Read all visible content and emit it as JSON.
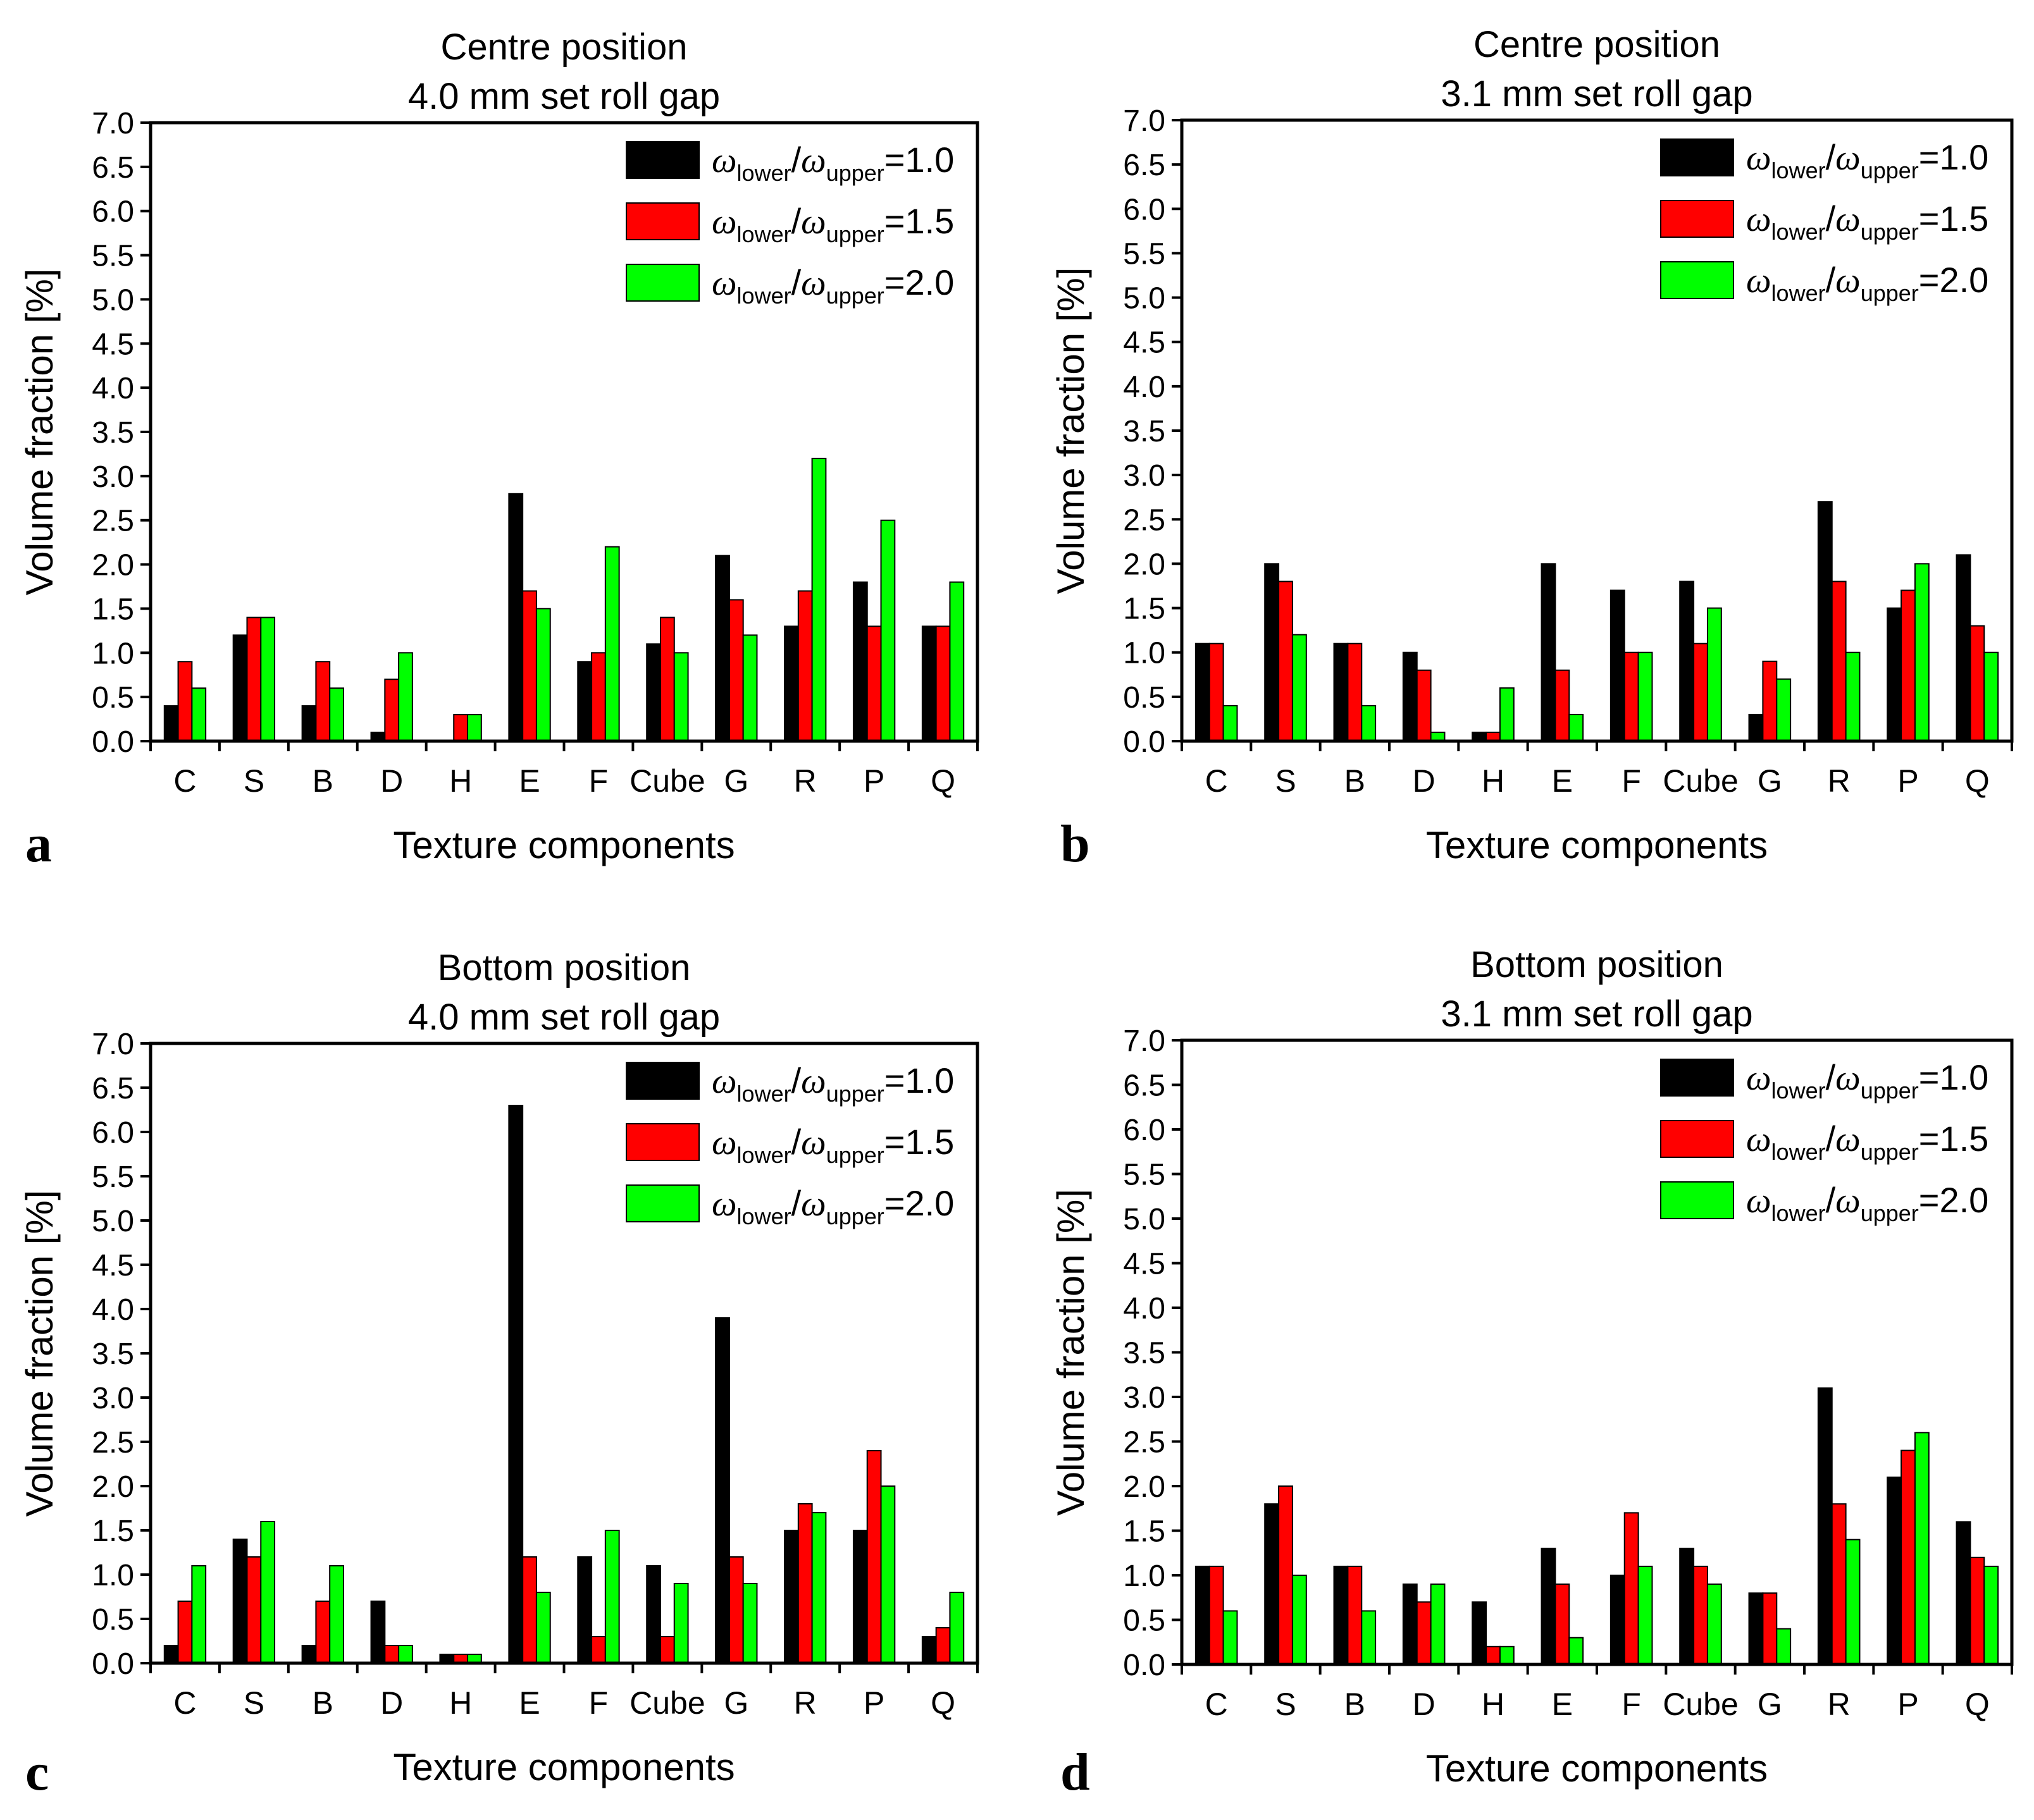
{
  "colors": {
    "s1": "#000000",
    "s2": "#ff0000",
    "s3": "#00ff00"
  },
  "chart_data": [
    {
      "id": "a",
      "type": "bar",
      "panel_letter": "a",
      "title_line1": "Centre position",
      "title_line2": "4.0 mm set roll gap",
      "xlabel": "Texture components",
      "ylabel": "Volume fraction [%]",
      "ylim": [
        0,
        7
      ],
      "yticks": [
        "0.0",
        "0.5",
        "1.0",
        "1.5",
        "2.0",
        "2.5",
        "3.0",
        "3.5",
        "4.0",
        "4.5",
        "5.0",
        "5.5",
        "6.0",
        "6.5",
        "7.0"
      ],
      "categories": [
        "C",
        "S",
        "B",
        "D",
        "H",
        "E",
        "F",
        "Cube",
        "G",
        "R",
        "P",
        "Q"
      ],
      "legend_position": "top-right",
      "series": [
        {
          "name": "ωlower/ωupper=1.0",
          "legend_prefix": "ω",
          "legend_sub1": "lower",
          "legend_sep": "/",
          "legend_sub2": "upper",
          "legend_value": "=1.0",
          "values": [
            0.4,
            1.2,
            0.4,
            0.1,
            0.0,
            2.8,
            0.9,
            1.1,
            2.1,
            1.3,
            1.8,
            1.3
          ]
        },
        {
          "name": "ωlower/ωupper=1.5",
          "legend_prefix": "ω",
          "legend_sub1": "lower",
          "legend_sep": "/",
          "legend_sub2": "upper",
          "legend_value": "=1.5",
          "values": [
            0.9,
            1.4,
            0.9,
            0.7,
            0.3,
            1.7,
            1.0,
            1.4,
            1.6,
            1.7,
            1.3,
            1.3
          ]
        },
        {
          "name": "ωlower/ωupper=2.0",
          "legend_prefix": "ω",
          "legend_sub1": "lower",
          "legend_sep": "/",
          "legend_sub2": "upper",
          "legend_value": "=2.0",
          "values": [
            0.6,
            1.4,
            0.6,
            1.0,
            0.3,
            1.5,
            2.2,
            1.0,
            1.2,
            3.2,
            2.5,
            1.8
          ]
        }
      ]
    },
    {
      "id": "b",
      "type": "bar",
      "panel_letter": "b",
      "title_line1": "Centre position",
      "title_line2": "3.1 mm set roll gap",
      "xlabel": "Texture components",
      "ylabel": "Volume fraction [%]",
      "ylim": [
        0,
        7
      ],
      "yticks": [
        "0.0",
        "0.5",
        "1.0",
        "1.5",
        "2.0",
        "2.5",
        "3.0",
        "3.5",
        "4.0",
        "4.5",
        "5.0",
        "5.5",
        "6.0",
        "6.5",
        "7.0"
      ],
      "categories": [
        "C",
        "S",
        "B",
        "D",
        "H",
        "E",
        "F",
        "Cube",
        "G",
        "R",
        "P",
        "Q"
      ],
      "legend_position": "top-right",
      "series": [
        {
          "name": "ωlower/ωupper=1.0",
          "legend_prefix": "ω",
          "legend_sub1": "lower",
          "legend_sep": "/",
          "legend_sub2": "upper",
          "legend_value": "=1.0",
          "values": [
            1.1,
            2.0,
            1.1,
            1.0,
            0.1,
            2.0,
            1.7,
            1.8,
            0.3,
            2.7,
            1.5,
            2.1
          ]
        },
        {
          "name": "ωlower/ωupper=1.5",
          "legend_prefix": "ω",
          "legend_sub1": "lower",
          "legend_sep": "/",
          "legend_sub2": "upper",
          "legend_value": "=1.5",
          "values": [
            1.1,
            1.8,
            1.1,
            0.8,
            0.1,
            0.8,
            1.0,
            1.1,
            0.9,
            1.8,
            1.7,
            1.3
          ]
        },
        {
          "name": "ωlower/ωupper=2.0",
          "legend_prefix": "ω",
          "legend_sub1": "lower",
          "legend_sep": "/",
          "legend_sub2": "upper",
          "legend_value": "=2.0",
          "values": [
            0.4,
            1.2,
            0.4,
            0.1,
            0.6,
            0.3,
            1.0,
            1.5,
            0.7,
            1.0,
            2.0,
            1.0
          ]
        }
      ]
    },
    {
      "id": "c",
      "type": "bar",
      "panel_letter": "c",
      "title_line1": "Bottom position",
      "title_line2": "4.0 mm set roll gap",
      "xlabel": "Texture components",
      "ylabel": "Volume fraction [%]",
      "ylim": [
        0,
        7
      ],
      "yticks": [
        "0.0",
        "0.5",
        "1.0",
        "1.5",
        "2.0",
        "2.5",
        "3.0",
        "3.5",
        "4.0",
        "4.5",
        "5.0",
        "5.5",
        "6.0",
        "6.5",
        "7.0"
      ],
      "categories": [
        "C",
        "S",
        "B",
        "D",
        "H",
        "E",
        "F",
        "Cube",
        "G",
        "R",
        "P",
        "Q"
      ],
      "legend_position": "top-right",
      "series": [
        {
          "name": "ωlower/ωupper=1.0",
          "legend_prefix": "ω",
          "legend_sub1": "lower",
          "legend_sep": "/",
          "legend_sub2": "upper",
          "legend_value": "=1.0",
          "values": [
            0.2,
            1.4,
            0.2,
            0.7,
            0.1,
            6.3,
            1.2,
            1.1,
            3.9,
            1.5,
            1.5,
            0.3
          ]
        },
        {
          "name": "ωlower/ωupper=1.5",
          "legend_prefix": "ω",
          "legend_sub1": "lower",
          "legend_sep": "/",
          "legend_sub2": "upper",
          "legend_value": "=1.5",
          "values": [
            0.7,
            1.2,
            0.7,
            0.2,
            0.1,
            1.2,
            0.3,
            0.3,
            1.2,
            1.8,
            2.4,
            0.4
          ]
        },
        {
          "name": "ωlower/ωupper=2.0",
          "legend_prefix": "ω",
          "legend_sub1": "lower",
          "legend_sep": "/",
          "legend_sub2": "upper",
          "legend_value": "=2.0",
          "values": [
            1.1,
            1.6,
            1.1,
            0.2,
            0.1,
            0.8,
            1.5,
            0.9,
            0.9,
            1.7,
            2.0,
            0.8
          ]
        }
      ]
    },
    {
      "id": "d",
      "type": "bar",
      "panel_letter": "d",
      "title_line1": "Bottom position",
      "title_line2": "3.1 mm set roll gap",
      "xlabel": "Texture components",
      "ylabel": "Volume fraction [%]",
      "ylim": [
        0,
        7
      ],
      "yticks": [
        "0.0",
        "0.5",
        "1.0",
        "1.5",
        "2.0",
        "2.5",
        "3.0",
        "3.5",
        "4.0",
        "4.5",
        "5.0",
        "5.5",
        "6.0",
        "6.5",
        "7.0"
      ],
      "categories": [
        "C",
        "S",
        "B",
        "D",
        "H",
        "E",
        "F",
        "Cube",
        "G",
        "R",
        "P",
        "Q"
      ],
      "legend_position": "top-right",
      "series": [
        {
          "name": "ωlower/ωupper=1.0",
          "legend_prefix": "ω",
          "legend_sub1": "lower",
          "legend_sep": "/",
          "legend_sub2": "upper",
          "legend_value": "=1.0",
          "values": [
            1.1,
            1.8,
            1.1,
            0.9,
            0.7,
            1.3,
            1.0,
            1.3,
            0.8,
            3.1,
            2.1,
            1.6
          ]
        },
        {
          "name": "ωlower/ωupper=1.5",
          "legend_prefix": "ω",
          "legend_sub1": "lower",
          "legend_sep": "/",
          "legend_sub2": "upper",
          "legend_value": "=1.5",
          "values": [
            1.1,
            2.0,
            1.1,
            0.7,
            0.2,
            0.9,
            1.7,
            1.1,
            0.8,
            1.8,
            2.4,
            1.2
          ]
        },
        {
          "name": "ωlower/ωupper=2.0",
          "legend_prefix": "ω",
          "legend_sub1": "lower",
          "legend_sep": "/",
          "legend_sub2": "upper",
          "legend_value": "=2.0",
          "values": [
            0.6,
            1.0,
            0.6,
            0.9,
            0.2,
            0.3,
            1.1,
            0.9,
            0.4,
            1.4,
            2.6,
            1.1
          ]
        }
      ]
    }
  ]
}
